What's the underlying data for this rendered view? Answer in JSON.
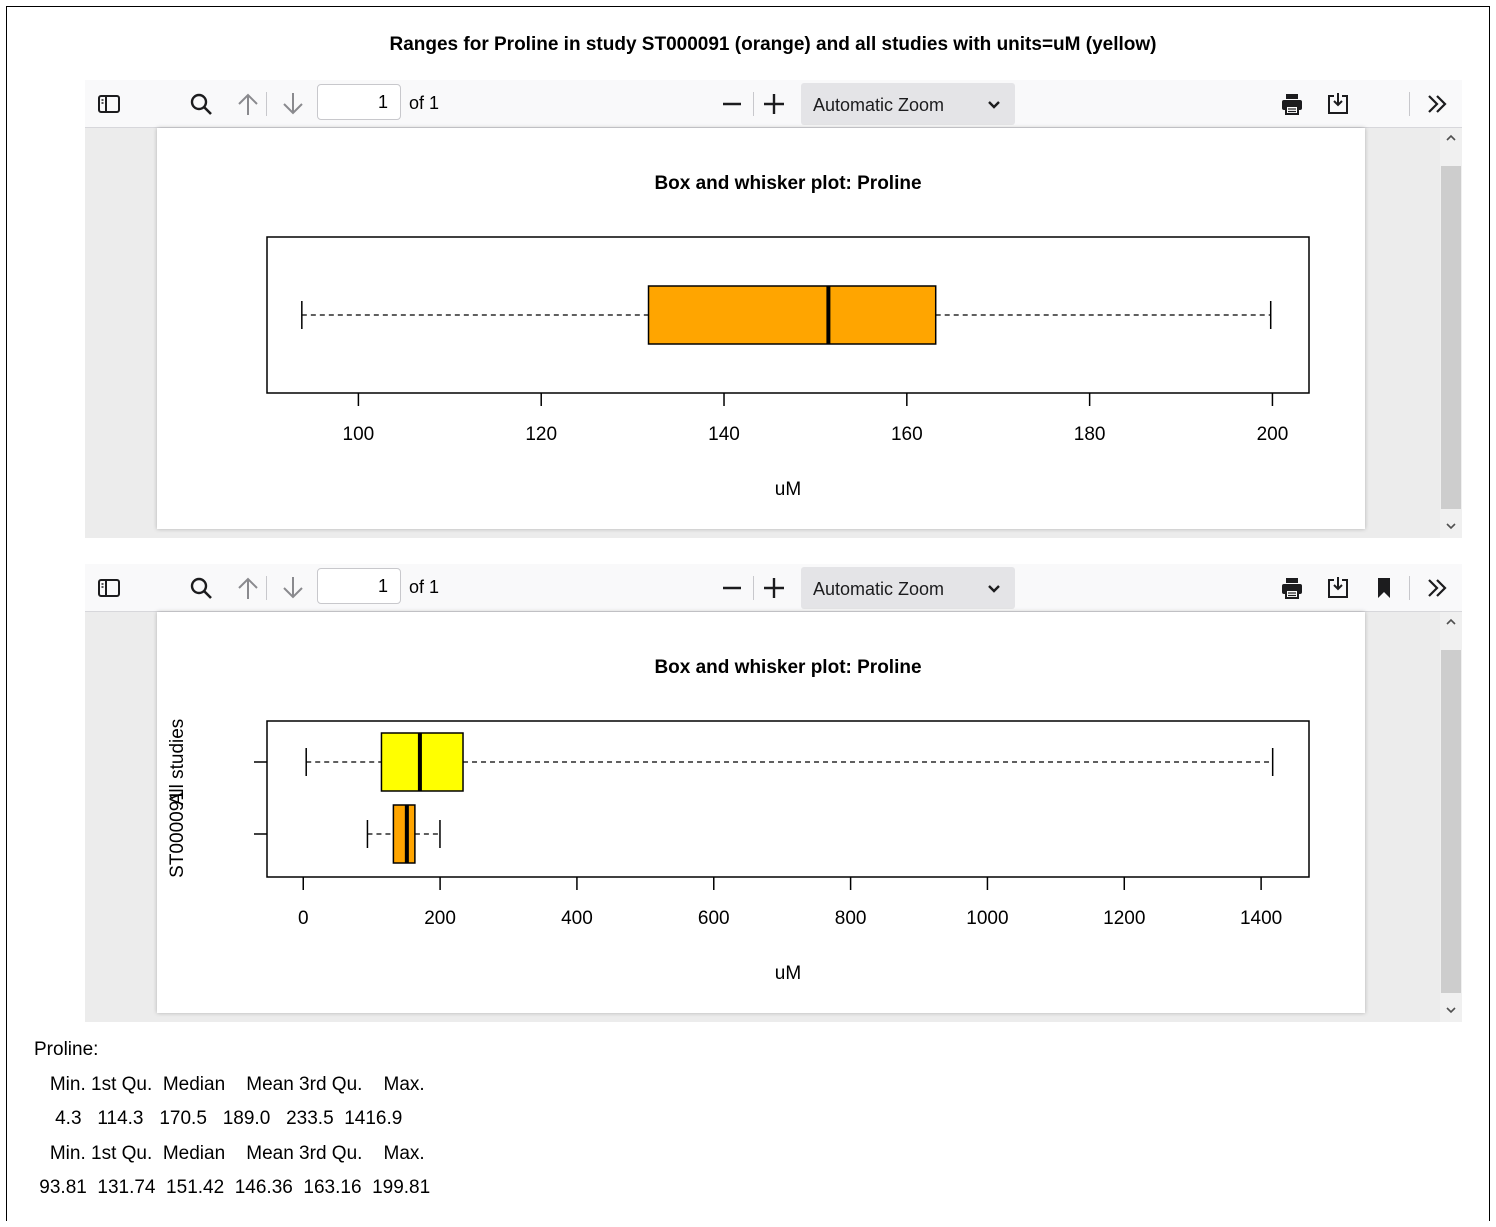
{
  "page_title": "Ranges for Proline in study ST000091 (orange) and all studies with units=uM (yellow)",
  "toolbar": {
    "page_number": "1",
    "page_count_label": "of 1",
    "zoom_label": "Automatic Zoom",
    "icons": [
      "sidebar-toggle-icon",
      "search-icon",
      "arrow-up-icon",
      "arrow-down-icon",
      "zoom-out-icon",
      "zoom-in-icon",
      "chevron-down-icon",
      "print-icon",
      "save-icon",
      "bookmark-icon",
      "double-chevron-right-icon"
    ]
  },
  "chart_data": [
    {
      "type": "boxplot",
      "title": "Box and whisker plot: Proline",
      "xlabel": "uM",
      "ylabel": "",
      "xlim": [
        90,
        204
      ],
      "ticks": [
        100,
        120,
        140,
        160,
        180,
        200
      ],
      "series": [
        {
          "name": "",
          "min": 93.81,
          "q1": 131.74,
          "median": 151.42,
          "q3": 163.16,
          "max": 199.81,
          "color": "#FFA500"
        }
      ]
    },
    {
      "type": "boxplot",
      "title": "Box and whisker plot: Proline",
      "xlabel": "uM",
      "ylabel": "",
      "xlim": [
        -53,
        1470
      ],
      "ticks": [
        0,
        200,
        400,
        600,
        800,
        1000,
        1200,
        1400
      ],
      "series": [
        {
          "name": "All studies",
          "min": 4.3,
          "q1": 114.3,
          "median": 170.5,
          "q3": 233.5,
          "max": 1416.9,
          "color": "#FFFF00"
        },
        {
          "name": "ST000091",
          "min": 93.81,
          "q1": 131.74,
          "median": 151.42,
          "q3": 163.16,
          "max": 199.81,
          "color": "#FFA500"
        }
      ]
    }
  ],
  "summary": {
    "label": "Proline:",
    "rows": [
      "   Min. 1st Qu.  Median    Mean 3rd Qu.    Max. ",
      "    4.3   114.3   170.5   189.0   233.5  1416.9 ",
      "   Min. 1st Qu.  Median    Mean 3rd Qu.    Max. ",
      " 93.81  131.74  151.42  146.36  163.16  199.81 "
    ]
  }
}
